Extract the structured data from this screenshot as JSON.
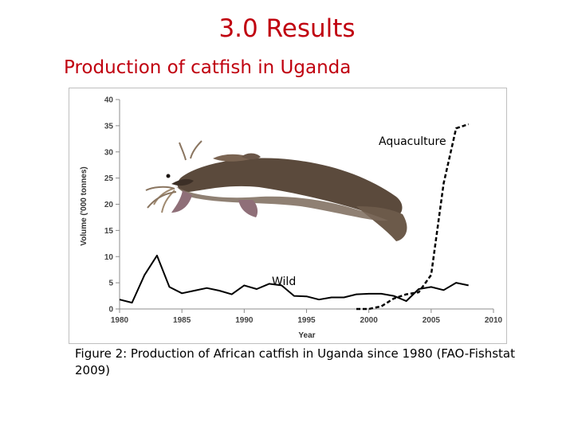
{
  "slide": {
    "title": "3.0   Results",
    "subtitle": "Production of catfish in Uganda",
    "caption": "Figure 2: Production of African catfish in Uganda since 1980 (FAO-Fishstat 2009)"
  },
  "colors": {
    "title": "#c0000f",
    "line": "#000000"
  },
  "chart_data": {
    "type": "line",
    "xlabel": "Year",
    "ylabel": "Volume ('000 tonnes)",
    "xlim": [
      1980,
      2010
    ],
    "ylim": [
      0,
      40
    ],
    "x_ticks": [
      "1980",
      "1985",
      "1990",
      "1995",
      "2000",
      "2005",
      "2010"
    ],
    "y_ticks": [
      "0",
      "5",
      "10",
      "15",
      "20",
      "25",
      "30",
      "35",
      "40"
    ],
    "grid": false,
    "series": [
      {
        "name": "Wild",
        "style": "solid",
        "x": [
          1980,
          1981,
          1982,
          1983,
          1984,
          1985,
          1986,
          1987,
          1988,
          1989,
          1990,
          1991,
          1992,
          1993,
          1994,
          1995,
          1996,
          1997,
          1998,
          1999,
          2000,
          2001,
          2002,
          2003,
          2004,
          2005,
          2006,
          2007,
          2008
        ],
        "y": [
          1.8,
          1.2,
          6.5,
          10.2,
          4.2,
          3.0,
          3.5,
          4.0,
          3.5,
          2.8,
          4.5,
          3.8,
          4.8,
          4.5,
          2.5,
          2.4,
          1.8,
          2.2,
          2.2,
          2.8,
          2.9,
          2.9,
          2.5,
          1.5,
          3.8,
          4.2,
          3.6,
          5.0,
          4.5
        ]
      },
      {
        "name": "Aquaculture",
        "style": "dashed",
        "x": [
          1999,
          2000,
          2001,
          2002,
          2003,
          2004,
          2005,
          2006,
          2007,
          2008
        ],
        "y": [
          0.0,
          0.0,
          0.5,
          2.0,
          2.8,
          3.2,
          6.5,
          24.0,
          34.5,
          35.3
        ]
      }
    ]
  }
}
